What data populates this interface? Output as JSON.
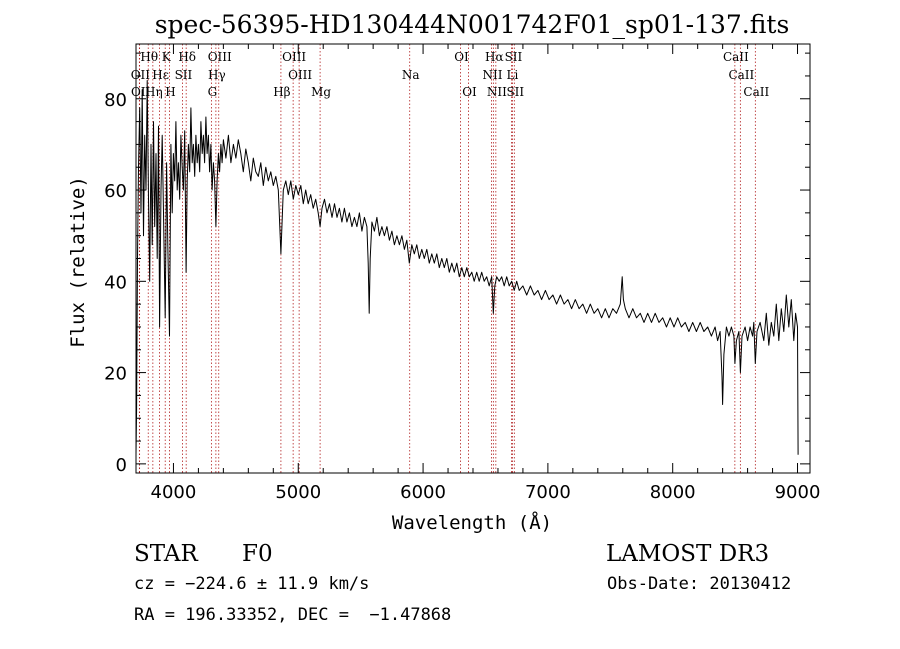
{
  "chart_data": {
    "type": "line",
    "title": "spec-56395-HD130444N001742F01_sp01-137.fits",
    "xlabel": "Wavelength (Å)",
    "ylabel": "Flux (relative)",
    "xlim": [
      3700,
      9100
    ],
    "ylim": [
      -2,
      92
    ],
    "x_ticks": [
      4000,
      5000,
      6000,
      7000,
      8000,
      9000
    ],
    "y_ticks": [
      0,
      20,
      40,
      60,
      80
    ],
    "grid": false,
    "series": [
      {
        "values": [
          [
            3700,
            2
          ],
          [
            3705,
            12
          ],
          [
            3712,
            45
          ],
          [
            3720,
            65
          ],
          [
            3730,
            78
          ],
          [
            3740,
            55
          ],
          [
            3750,
            82
          ],
          [
            3760,
            50
          ],
          [
            3770,
            72
          ],
          [
            3780,
            60
          ],
          [
            3790,
            84
          ],
          [
            3800,
            58
          ],
          [
            3810,
            40
          ],
          [
            3820,
            70
          ],
          [
            3830,
            48
          ],
          [
            3840,
            75
          ],
          [
            3850,
            52
          ],
          [
            3860,
            68
          ],
          [
            3870,
            45
          ],
          [
            3880,
            74
          ],
          [
            3889,
            30
          ],
          [
            3900,
            60
          ],
          [
            3910,
            72
          ],
          [
            3920,
            55
          ],
          [
            3934,
            32
          ],
          [
            3945,
            66
          ],
          [
            3955,
            48
          ],
          [
            3968,
            28
          ],
          [
            3980,
            70
          ],
          [
            3990,
            55
          ],
          [
            4000,
            68
          ],
          [
            4010,
            62
          ],
          [
            4020,
            75
          ],
          [
            4030,
            60
          ],
          [
            4040,
            66
          ],
          [
            4050,
            58
          ],
          [
            4060,
            72
          ],
          [
            4070,
            65
          ],
          [
            4080,
            60
          ],
          [
            4090,
            73
          ],
          [
            4101,
            42
          ],
          [
            4110,
            62
          ],
          [
            4120,
            70
          ],
          [
            4130,
            64
          ],
          [
            4140,
            78
          ],
          [
            4150,
            66
          ],
          [
            4160,
            70
          ],
          [
            4170,
            63
          ],
          [
            4180,
            72
          ],
          [
            4190,
            66
          ],
          [
            4200,
            70
          ],
          [
            4210,
            64
          ],
          [
            4220,
            75
          ],
          [
            4230,
            68
          ],
          [
            4240,
            72
          ],
          [
            4250,
            66
          ],
          [
            4260,
            76
          ],
          [
            4270,
            68
          ],
          [
            4280,
            72
          ],
          [
            4290,
            64
          ],
          [
            4300,
            70
          ],
          [
            4310,
            60
          ],
          [
            4320,
            66
          ],
          [
            4330,
            62
          ],
          [
            4340,
            52
          ],
          [
            4350,
            62
          ],
          [
            4360,
            68
          ],
          [
            4370,
            64
          ],
          [
            4380,
            70
          ],
          [
            4390,
            66
          ],
          [
            4400,
            71
          ],
          [
            4420,
            67
          ],
          [
            4440,
            72
          ],
          [
            4460,
            66
          ],
          [
            4480,
            70
          ],
          [
            4500,
            67
          ],
          [
            4520,
            71
          ],
          [
            4540,
            68
          ],
          [
            4560,
            64
          ],
          [
            4580,
            69
          ],
          [
            4600,
            66
          ],
          [
            4620,
            62
          ],
          [
            4640,
            67
          ],
          [
            4660,
            64
          ],
          [
            4680,
            63
          ],
          [
            4700,
            66
          ],
          [
            4720,
            61
          ],
          [
            4740,
            65
          ],
          [
            4760,
            62
          ],
          [
            4780,
            64
          ],
          [
            4800,
            61
          ],
          [
            4820,
            63
          ],
          [
            4840,
            60
          ],
          [
            4861,
            46
          ],
          [
            4880,
            60
          ],
          [
            4900,
            62
          ],
          [
            4920,
            59
          ],
          [
            4940,
            62
          ],
          [
            4960,
            58
          ],
          [
            4980,
            61
          ],
          [
            5000,
            59
          ],
          [
            5020,
            61
          ],
          [
            5040,
            57
          ],
          [
            5060,
            60
          ],
          [
            5080,
            57
          ],
          [
            5100,
            59
          ],
          [
            5120,
            56
          ],
          [
            5140,
            58
          ],
          [
            5160,
            55
          ],
          [
            5175,
            52
          ],
          [
            5190,
            56
          ],
          [
            5210,
            58
          ],
          [
            5230,
            55
          ],
          [
            5250,
            57
          ],
          [
            5270,
            54
          ],
          [
            5290,
            57
          ],
          [
            5310,
            54
          ],
          [
            5330,
            56
          ],
          [
            5350,
            53
          ],
          [
            5370,
            56
          ],
          [
            5390,
            53
          ],
          [
            5410,
            55
          ],
          [
            5430,
            52
          ],
          [
            5450,
            54
          ],
          [
            5470,
            52
          ],
          [
            5490,
            55
          ],
          [
            5510,
            51
          ],
          [
            5530,
            54
          ],
          [
            5550,
            52
          ],
          [
            5560,
            44
          ],
          [
            5568,
            33
          ],
          [
            5576,
            45
          ],
          [
            5590,
            53
          ],
          [
            5610,
            51
          ],
          [
            5630,
            54
          ],
          [
            5650,
            50
          ],
          [
            5670,
            52
          ],
          [
            5690,
            50
          ],
          [
            5710,
            52
          ],
          [
            5730,
            49
          ],
          [
            5750,
            51
          ],
          [
            5770,
            48
          ],
          [
            5790,
            50
          ],
          [
            5810,
            48
          ],
          [
            5830,
            50
          ],
          [
            5850,
            47
          ],
          [
            5870,
            49
          ],
          [
            5890,
            44
          ],
          [
            5910,
            48
          ],
          [
            5930,
            46
          ],
          [
            5950,
            48
          ],
          [
            5970,
            45
          ],
          [
            5990,
            47
          ],
          [
            6010,
            45
          ],
          [
            6030,
            47
          ],
          [
            6050,
            44
          ],
          [
            6070,
            46
          ],
          [
            6090,
            44
          ],
          [
            6110,
            46
          ],
          [
            6130,
            43
          ],
          [
            6150,
            45
          ],
          [
            6170,
            43
          ],
          [
            6190,
            45
          ],
          [
            6210,
            42
          ],
          [
            6230,
            44
          ],
          [
            6250,
            42
          ],
          [
            6270,
            44
          ],
          [
            6290,
            41
          ],
          [
            6310,
            43
          ],
          [
            6330,
            41
          ],
          [
            6350,
            43
          ],
          [
            6370,
            41
          ],
          [
            6390,
            42
          ],
          [
            6410,
            40
          ],
          [
            6430,
            42
          ],
          [
            6450,
            40
          ],
          [
            6470,
            42
          ],
          [
            6490,
            40
          ],
          [
            6510,
            41
          ],
          [
            6530,
            39
          ],
          [
            6550,
            41
          ],
          [
            6563,
            33
          ],
          [
            6575,
            39
          ],
          [
            6590,
            41
          ],
          [
            6610,
            40
          ],
          [
            6630,
            41
          ],
          [
            6650,
            39
          ],
          [
            6670,
            41
          ],
          [
            6690,
            39
          ],
          [
            6710,
            40
          ],
          [
            6730,
            38
          ],
          [
            6750,
            40
          ],
          [
            6770,
            38
          ],
          [
            6800,
            39
          ],
          [
            6830,
            37
          ],
          [
            6860,
            39
          ],
          [
            6890,
            37
          ],
          [
            6920,
            38
          ],
          [
            6950,
            36
          ],
          [
            6980,
            38
          ],
          [
            7010,
            36
          ],
          [
            7040,
            37
          ],
          [
            7070,
            35
          ],
          [
            7100,
            37
          ],
          [
            7130,
            35
          ],
          [
            7160,
            36
          ],
          [
            7190,
            34
          ],
          [
            7220,
            36
          ],
          [
            7250,
            34
          ],
          [
            7280,
            35
          ],
          [
            7310,
            33
          ],
          [
            7340,
            35
          ],
          [
            7370,
            33
          ],
          [
            7400,
            34
          ],
          [
            7430,
            32
          ],
          [
            7460,
            34
          ],
          [
            7490,
            32
          ],
          [
            7520,
            34
          ],
          [
            7550,
            33
          ],
          [
            7580,
            35
          ],
          [
            7595,
            41
          ],
          [
            7605,
            36
          ],
          [
            7620,
            34
          ],
          [
            7650,
            32
          ],
          [
            7680,
            34
          ],
          [
            7710,
            32
          ],
          [
            7740,
            33
          ],
          [
            7770,
            31
          ],
          [
            7800,
            33
          ],
          [
            7830,
            31
          ],
          [
            7860,
            33
          ],
          [
            7890,
            31
          ],
          [
            7920,
            32
          ],
          [
            7950,
            30
          ],
          [
            7980,
            32
          ],
          [
            8010,
            30
          ],
          [
            8040,
            32
          ],
          [
            8070,
            30
          ],
          [
            8100,
            31
          ],
          [
            8130,
            29
          ],
          [
            8160,
            31
          ],
          [
            8190,
            29
          ],
          [
            8220,
            31
          ],
          [
            8250,
            29
          ],
          [
            8280,
            30
          ],
          [
            8310,
            28
          ],
          [
            8340,
            30
          ],
          [
            8360,
            27
          ],
          [
            8380,
            29
          ],
          [
            8395,
            19
          ],
          [
            8400,
            13
          ],
          [
            8410,
            24
          ],
          [
            8430,
            30
          ],
          [
            8450,
            28
          ],
          [
            8470,
            30
          ],
          [
            8490,
            28
          ],
          [
            8498,
            22
          ],
          [
            8510,
            27
          ],
          [
            8530,
            29
          ],
          [
            8542,
            20
          ],
          [
            8555,
            28
          ],
          [
            8580,
            30
          ],
          [
            8600,
            27
          ],
          [
            8620,
            30
          ],
          [
            8640,
            28
          ],
          [
            8650,
            31
          ],
          [
            8662,
            22
          ],
          [
            8675,
            29
          ],
          [
            8700,
            31
          ],
          [
            8730,
            27
          ],
          [
            8750,
            33
          ],
          [
            8770,
            26
          ],
          [
            8790,
            31
          ],
          [
            8810,
            28
          ],
          [
            8830,
            35
          ],
          [
            8850,
            27
          ],
          [
            8870,
            34
          ],
          [
            8890,
            29
          ],
          [
            8910,
            37
          ],
          [
            8930,
            30
          ],
          [
            8950,
            36
          ],
          [
            8970,
            27
          ],
          [
            8985,
            33
          ],
          [
            9000,
            30
          ],
          [
            9005,
            2
          ]
        ]
      }
    ],
    "lines": [
      {
        "row": 0,
        "label": "Hθ",
        "x": 3798
      },
      {
        "row": 0,
        "label": "K",
        "x": 3934
      },
      {
        "row": 0,
        "label": "Hδ",
        "x": 4102
      },
      {
        "row": 0,
        "label": "OIII",
        "x": 4363
      },
      {
        "row": 0,
        "label": "OIII",
        "x": 4959
      },
      {
        "row": 0,
        "label": "OI",
        "x": 6300
      },
      {
        "row": 0,
        "label": "Hα",
        "x": 6563
      },
      {
        "row": 0,
        "label": "SII",
        "x": 6716
      },
      {
        "row": 0,
        "label": "CaII",
        "x": 8498
      },
      {
        "row": 1,
        "label": "OII",
        "x": 3727
      },
      {
        "row": 1,
        "label": "Hε",
        "x": 3889
      },
      {
        "row": 1,
        "label": "SII",
        "x": 4072
      },
      {
        "row": 1,
        "label": "Hγ",
        "x": 4340
      },
      {
        "row": 1,
        "label": "OIII",
        "x": 5007
      },
      {
        "row": 1,
        "label": "Na",
        "x": 5893
      },
      {
        "row": 1,
        "label": "NII",
        "x": 6548
      },
      {
        "row": 1,
        "label": "Li",
        "x": 6708
      },
      {
        "row": 1,
        "label": "CaII",
        "x": 8542
      },
      {
        "row": 2,
        "label": "OII",
        "x": 3729
      },
      {
        "row": 2,
        "label": "Hη",
        "x": 3835
      },
      {
        "row": 2,
        "label": "H",
        "x": 3968
      },
      {
        "row": 2,
        "label": "G",
        "x": 4304
      },
      {
        "row": 2,
        "label": "Hβ",
        "x": 4861
      },
      {
        "row": 2,
        "label": "Mg",
        "x": 5175
      },
      {
        "row": 2,
        "label": "OI",
        "x": 6364
      },
      {
        "row": 2,
        "label": "NII",
        "x": 6583
      },
      {
        "row": 2,
        "label": "SII",
        "x": 6731
      },
      {
        "row": 2,
        "label": "CaII",
        "x": 8662
      }
    ]
  },
  "info": {
    "class": "STAR",
    "subclass": "F0",
    "survey": "LAMOST DR3",
    "cz": "cz = −224.6 ± 11.9 km/s",
    "obs_date": "Obs-Date: 20130412",
    "coords": "RA = 196.33352, DEC =  −1.47868"
  }
}
